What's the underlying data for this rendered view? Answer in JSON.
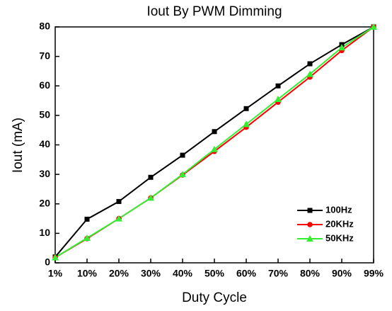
{
  "chart_data": {
    "type": "line",
    "title": "Iout By PWM Dimming",
    "xlabel": "Duty Cycle",
    "ylabel": "Iout (mA)",
    "categories": [
      "1%",
      "10%",
      "20%",
      "30%",
      "40%",
      "50%",
      "60%",
      "70%",
      "80%",
      "90%",
      "99%"
    ],
    "series": [
      {
        "name": "100Hz",
        "color": "#000000",
        "marker": "square",
        "values": [
          2,
          14.8,
          20.8,
          29,
          36.5,
          44.5,
          52.3,
          60,
          67.5,
          74,
          80
        ]
      },
      {
        "name": "20KHz",
        "color": "#ff0000",
        "marker": "circle",
        "values": [
          1.8,
          8.2,
          15,
          22,
          29.8,
          37.8,
          46,
          54.5,
          63,
          72,
          80
        ]
      },
      {
        "name": "50KHz",
        "color": "#33ee33",
        "marker": "triangle",
        "values": [
          1.8,
          8.4,
          15,
          22,
          30,
          38.5,
          47,
          55.5,
          64,
          73,
          80
        ]
      }
    ],
    "ylim": [
      0,
      80
    ],
    "yticks": [
      0,
      10,
      20,
      30,
      40,
      50,
      60,
      70,
      80
    ],
    "grid": false,
    "legend": "lower right"
  }
}
